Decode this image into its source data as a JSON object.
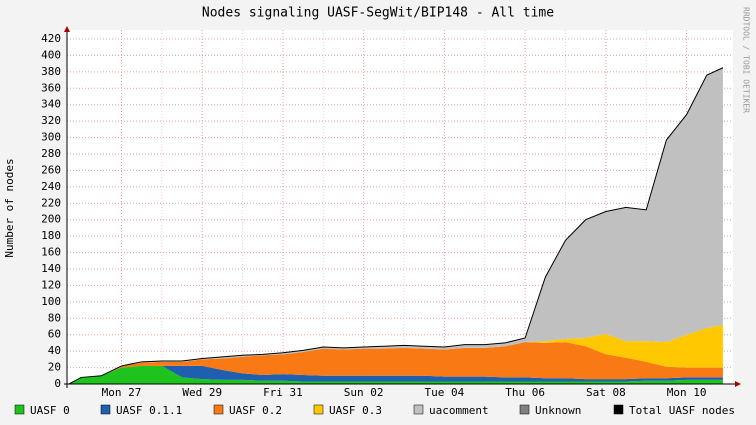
{
  "chart_data": {
    "type": "stacked-area",
    "title": "Nodes signaling UASF-SegWit/BIP148 - All time",
    "y_label": "Number of nodes",
    "credit": "RRDTOOL / TOBI OETIKER",
    "x": [
      -1.3,
      -1,
      -0.5,
      0,
      0.5,
      1,
      1.5,
      2,
      2.5,
      3,
      3.5,
      4,
      4.5,
      5,
      5.5,
      6,
      6.5,
      7,
      7.5,
      8,
      8.5,
      9,
      9.5,
      10,
      10.5,
      11,
      11.5,
      12,
      12.5,
      13,
      13.5,
      14,
      14.5,
      14.9
    ],
    "xlim": [
      -1.35,
      15.15
    ],
    "xticks": [
      {
        "value": 0,
        "label": "Mon 27"
      },
      {
        "value": 2,
        "label": "Wed 29"
      },
      {
        "value": 4,
        "label": "Fri 31"
      },
      {
        "value": 6,
        "label": "Sun 02"
      },
      {
        "value": 8,
        "label": "Tue 04"
      },
      {
        "value": 10,
        "label": "Thu 06"
      },
      {
        "value": 12,
        "label": "Sat 08"
      },
      {
        "value": 14,
        "label": "Mon 10"
      }
    ],
    "ylim": [
      0,
      420
    ],
    "yticks": [
      0,
      20,
      40,
      60,
      80,
      100,
      120,
      140,
      160,
      180,
      200,
      220,
      240,
      260,
      280,
      300,
      320,
      340,
      360,
      380,
      400,
      420
    ],
    "grid": true,
    "series": [
      {
        "name": "UASF 0",
        "color": "#1ec31e",
        "values": [
          0,
          8,
          10,
          20,
          22,
          22,
          8,
          6,
          5,
          5,
          4,
          4,
          3,
          3,
          3,
          3,
          3,
          3,
          3,
          3,
          3,
          3,
          3,
          3,
          3,
          3,
          3,
          3,
          3,
          4,
          4,
          5,
          5,
          5
        ]
      },
      {
        "name": "UASF 0.1.1",
        "color": "#1f5fb0",
        "values": [
          0,
          0,
          0,
          0,
          0,
          0,
          14,
          16,
          12,
          8,
          7,
          8,
          8,
          7,
          7,
          7,
          7,
          7,
          7,
          6,
          6,
          6,
          5,
          5,
          4,
          4,
          3,
          3,
          3,
          3,
          3,
          3,
          3,
          3
        ]
      },
      {
        "name": "UASF 0.2",
        "color": "#f97a14",
        "values": [
          0,
          0,
          0,
          2,
          4,
          5,
          5,
          8,
          14,
          20,
          24,
          24,
          28,
          33,
          32,
          33,
          33,
          34,
          33,
          33,
          35,
          35,
          38,
          43,
          43,
          44,
          40,
          30,
          26,
          20,
          14,
          12,
          12,
          12
        ]
      },
      {
        "name": "UASF 0.3",
        "color": "#ffc800",
        "values": [
          0,
          0,
          0,
          0,
          0,
          0,
          0,
          0,
          0,
          0,
          0,
          0,
          0,
          0,
          0,
          0,
          0,
          0,
          0,
          0,
          0,
          0,
          0,
          0,
          2,
          4,
          10,
          25,
          20,
          25,
          30,
          40,
          48,
          52
        ]
      },
      {
        "name": "uacomment",
        "color": "#c0c0c0",
        "values": [
          0,
          0,
          0,
          0,
          1,
          1,
          1,
          1,
          2,
          2,
          1,
          2,
          2,
          2,
          2,
          2,
          3,
          3,
          3,
          3,
          4,
          4,
          4,
          5,
          78,
          120,
          144,
          149,
          163,
          160,
          246,
          268,
          308,
          313
        ]
      },
      {
        "name": "Unknown",
        "color": "#808080",
        "values": [
          0,
          0,
          0,
          0,
          0,
          0,
          0,
          0,
          0,
          0,
          0,
          0,
          0,
          0,
          0,
          0,
          0,
          0,
          0,
          0,
          0,
          0,
          0,
          0,
          0,
          0,
          0,
          0,
          0,
          0,
          0,
          0,
          0,
          0
        ]
      },
      {
        "name": "Total UASF nodes",
        "color": "#000000",
        "type": "line",
        "values": [
          0,
          8,
          10,
          22,
          27,
          28,
          28,
          31,
          33,
          35,
          36,
          38,
          41,
          45,
          44,
          45,
          46,
          47,
          46,
          45,
          48,
          48,
          50,
          56,
          130,
          175,
          200,
          210,
          215,
          212,
          297,
          328,
          376,
          385
        ]
      }
    ]
  }
}
